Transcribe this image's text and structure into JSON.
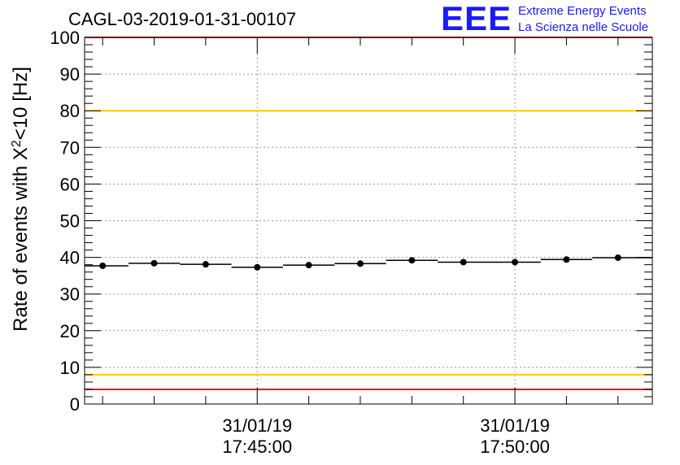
{
  "chart_data": {
    "type": "scatter",
    "title": "CAGL-03-2019-01-31-00107",
    "ylabel": "Rate of events with X^2<10 [Hz]",
    "ylim": [
      0,
      100
    ],
    "yticks": [
      "0",
      "10",
      "20",
      "30",
      "40",
      "50",
      "60",
      "70",
      "80",
      "90",
      "100"
    ],
    "xticks": [
      {
        "date": "31/01/19",
        "time": "17:45:00"
      },
      {
        "date": "31/01/19",
        "time": "17:50:00"
      }
    ],
    "grid": true,
    "reference_lines": [
      {
        "y": 100,
        "color": "#ff0000"
      },
      {
        "y": 80,
        "color": "#ffcc00"
      },
      {
        "y": 8,
        "color": "#ffcc00"
      },
      {
        "y": 4,
        "color": "#ff0000"
      }
    ],
    "series": [
      {
        "x": [
          "17:42:00",
          "17:43:00",
          "17:44:00",
          "17:45:00",
          "17:46:00",
          "17:47:00",
          "17:48:00",
          "17:49:00",
          "17:50:00",
          "17:51:00",
          "17:52:00"
        ],
        "values": [
          37.7,
          38.4,
          38.1,
          37.3,
          37.9,
          38.3,
          39.2,
          38.7,
          38.7,
          39.4,
          39.9
        ]
      }
    ]
  },
  "logo": {
    "mark": "EEE",
    "line1": "Extreme Energy Events",
    "line2": "La Scienza nelle Scuole",
    "color": "#1a1aff"
  }
}
